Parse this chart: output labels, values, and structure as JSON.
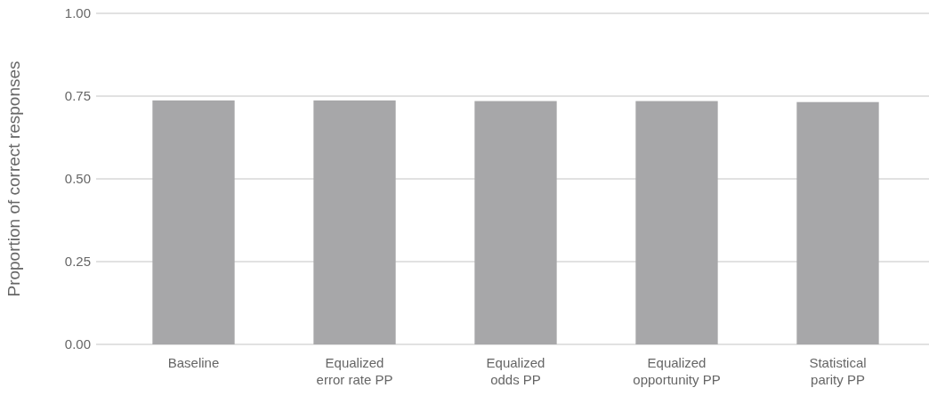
{
  "chart_data": {
    "type": "bar",
    "ylabel": "Proportion of correct responses",
    "categories": [
      "Baseline",
      "Equalized error rate PP",
      "Equalized odds PP",
      "Equalized opportunity PP",
      "Statistical parity PP"
    ],
    "values": [
      0.737,
      0.737,
      0.735,
      0.735,
      0.732
    ],
    "color": "#a7a7a9",
    "ylim": [
      0,
      1
    ],
    "yticks": [
      {
        "value": 0,
        "label": "0.00"
      },
      {
        "value": 0.25,
        "label": "0.25"
      },
      {
        "value": 0.5,
        "label": "0.50"
      },
      {
        "value": 0.75,
        "label": "0.75"
      },
      {
        "value": 1,
        "label": "1.00"
      }
    ],
    "grid": "y"
  }
}
